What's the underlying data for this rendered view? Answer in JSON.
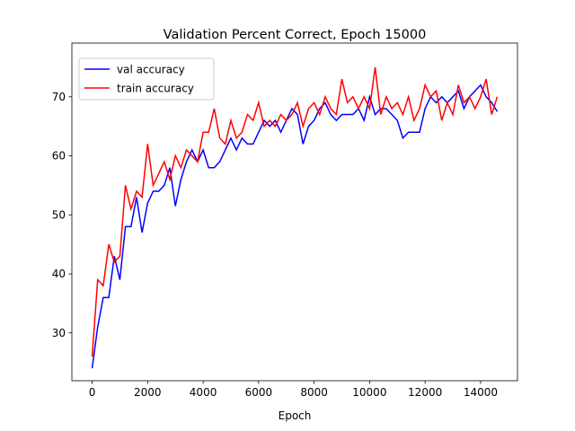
{
  "chart_data": {
    "type": "line",
    "title": "Validation Percent Correct, Epoch 15000",
    "x_label": "Epoch",
    "x": [
      0,
      200,
      400,
      600,
      800,
      1000,
      1200,
      1400,
      1600,
      1800,
      2000,
      2200,
      2400,
      2600,
      2800,
      3000,
      3200,
      3400,
      3600,
      3800,
      4000,
      4200,
      4400,
      4600,
      4800,
      5000,
      5200,
      5400,
      5600,
      5800,
      6000,
      6200,
      6400,
      6600,
      6800,
      7000,
      7200,
      7400,
      7600,
      7800,
      8000,
      8200,
      8400,
      8600,
      8800,
      9000,
      9200,
      9400,
      9600,
      9800,
      10000,
      10200,
      10400,
      10600,
      10800,
      11000,
      11200,
      11400,
      11600,
      11800,
      12000,
      12200,
      12400,
      12600,
      12800,
      13000,
      13200,
      13400,
      13600,
      13800,
      14000,
      14200,
      14400,
      14600
    ],
    "series": [
      {
        "name": "val accuracy",
        "color": "#0000ff",
        "values": [
          24,
          31,
          36,
          36,
          43,
          39,
          48,
          48,
          53,
          47,
          52,
          54,
          54,
          55,
          58,
          51.5,
          56,
          59,
          61,
          59,
          61,
          58,
          58,
          59,
          61,
          63,
          61,
          63,
          62,
          62,
          64,
          66,
          65,
          66,
          64,
          66,
          68,
          67,
          62,
          65,
          66,
          68,
          69,
          67,
          66,
          67,
          67,
          67,
          68,
          66,
          70,
          67,
          68,
          68,
          67,
          66,
          63,
          64,
          64,
          64,
          68,
          70,
          69,
          70,
          69,
          70,
          71,
          68,
          70,
          71,
          72,
          70,
          69,
          67.5
        ]
      },
      {
        "name": "train accuracy",
        "color": "#ff0000",
        "values": [
          26,
          39,
          38,
          45,
          42,
          43,
          55,
          51,
          54,
          53,
          62,
          55,
          57,
          59,
          56,
          60,
          58,
          61,
          60,
          59,
          64,
          64,
          68,
          63,
          62,
          66,
          63,
          64,
          67,
          66,
          69,
          65,
          66,
          65,
          67,
          66,
          67,
          69,
          65,
          68,
          69,
          67,
          70,
          68,
          67,
          73,
          69,
          70,
          68,
          70,
          68,
          75,
          67,
          70,
          68,
          69,
          67,
          70,
          66,
          68,
          72,
          70,
          71,
          66,
          69,
          67,
          72,
          69,
          70,
          68,
          70,
          73,
          67,
          70
        ]
      }
    ],
    "xlim": [
      -730,
      15330
    ],
    "ylim": [
      21.9,
      79.1
    ],
    "xticks": [
      0,
      2000,
      4000,
      6000,
      8000,
      10000,
      12000,
      14000
    ],
    "yticks": [
      30,
      40,
      50,
      60,
      70
    ],
    "legend": "upper left",
    "grid": false
  }
}
